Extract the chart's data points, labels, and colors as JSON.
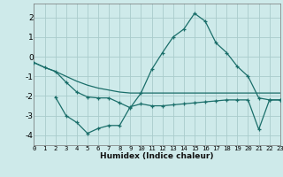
{
  "xlabel": "Humidex (Indice chaleur)",
  "bg_color": "#ceeaea",
  "grid_color": "#aacccc",
  "line_color": "#1a6e6a",
  "xlim": [
    0,
    23
  ],
  "ylim": [
    -4.5,
    2.7
  ],
  "yticks": [
    -4,
    -3,
    -2,
    -1,
    0,
    1,
    2
  ],
  "xticks": [
    0,
    1,
    2,
    3,
    4,
    5,
    6,
    7,
    8,
    9,
    10,
    11,
    12,
    13,
    14,
    15,
    16,
    17,
    18,
    19,
    20,
    21,
    22,
    23
  ],
  "line1_x": [
    0,
    1,
    2,
    3,
    4,
    5,
    6,
    7,
    8,
    9,
    10,
    11,
    12,
    13,
    14,
    15,
    16,
    17,
    18,
    19,
    20,
    21,
    22,
    23
  ],
  "line1_y": [
    -0.3,
    -0.55,
    -0.75,
    -1.0,
    -1.25,
    -1.45,
    -1.6,
    -1.7,
    -1.8,
    -1.85,
    -1.85,
    -1.85,
    -1.85,
    -1.85,
    -1.85,
    -1.85,
    -1.85,
    -1.85,
    -1.85,
    -1.85,
    -1.85,
    -1.85,
    -1.85,
    -1.85
  ],
  "line2_x": [
    0,
    1,
    2,
    3,
    4,
    5,
    6,
    7,
    8,
    9,
    10,
    11,
    12,
    13,
    14,
    15,
    16,
    17,
    18,
    19,
    20,
    21,
    22,
    23
  ],
  "line2_y": [
    -0.3,
    -0.55,
    -0.75,
    -1.3,
    -1.8,
    -2.05,
    -2.1,
    -2.1,
    -2.35,
    -2.6,
    -1.85,
    -0.65,
    0.2,
    1.0,
    1.4,
    2.2,
    1.8,
    0.7,
    0.2,
    -0.5,
    -1.0,
    -2.1,
    -2.2,
    -2.2
  ],
  "line3_x": [
    2,
    3,
    4,
    5,
    6,
    7,
    8,
    9,
    10,
    11,
    12,
    13,
    14,
    15,
    16,
    17,
    18,
    19,
    20,
    21,
    22,
    23
  ],
  "line3_y": [
    -2.05,
    -3.0,
    -3.35,
    -3.9,
    -3.65,
    -3.5,
    -3.5,
    -2.55,
    -2.4,
    -2.5,
    -2.5,
    -2.45,
    -2.4,
    -2.35,
    -2.3,
    -2.25,
    -2.2,
    -2.2,
    -2.2,
    -3.7,
    -2.2,
    -2.2
  ]
}
